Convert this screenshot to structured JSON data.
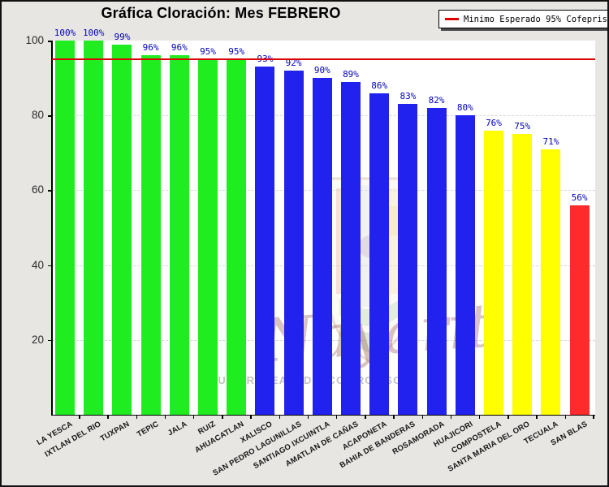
{
  "title": "Gráfica Cloración: Mes FEBRERO",
  "legend": {
    "label": "Minimo Esperado 95% Cofepris",
    "line_color": "#dd0000"
  },
  "watermark": {
    "script_text": "Nayarit",
    "fragments": [
      "U",
      "R",
      "EA",
      "D",
      "CO",
      "RO",
      "SO"
    ]
  },
  "chart_data": {
    "type": "bar",
    "title": "Gráfica Cloración: Mes FEBRERO",
    "categories": [
      "LA YESCA",
      "IXTLAN DEL RIO",
      "TUXPAN",
      "TEPIC",
      "JALA",
      "RUIZ",
      "AHUACATLAN",
      "XALISCO",
      "SAN PEDRO LAGUNILLAS",
      "SANTIAGO IXCUINTLA",
      "AMATLAN DE CAÑAS",
      "ACAPONETA",
      "BAHIA DE BANDERAS",
      "ROSAMORADA",
      "HUAJICORI",
      "COMPOSTELA",
      "SANTA MARIA DEL ORO",
      "TECUALA",
      "SAN BLAS"
    ],
    "values": [
      100,
      100,
      99,
      96,
      96,
      95,
      95,
      93,
      92,
      90,
      89,
      86,
      83,
      82,
      80,
      76,
      75,
      71,
      56
    ],
    "value_labels": [
      "100%",
      "100%",
      "99%",
      "96%",
      "96%",
      "95%",
      "95%",
      "93%",
      "92%",
      "90%",
      "89%",
      "86%",
      "83%",
      "82%",
      "80%",
      "76%",
      "75%",
      "71%",
      "56%"
    ],
    "bar_colors": [
      "#1fed1f",
      "#1fed1f",
      "#1fed1f",
      "#1fed1f",
      "#1fed1f",
      "#1fed1f",
      "#1fed1f",
      "#2222ee",
      "#2222ee",
      "#2222ee",
      "#2222ee",
      "#2222ee",
      "#2222ee",
      "#2222ee",
      "#2222ee",
      "#ffff00",
      "#ffff00",
      "#ffff00",
      "#ff2a2a"
    ],
    "xlabel": "",
    "ylabel": "",
    "ylim": [
      0,
      100
    ],
    "y_ticks": [
      20,
      40,
      60,
      80,
      100
    ],
    "grid": true,
    "legend_position": "top-right",
    "threshold_line": {
      "value": 95,
      "label": "Minimo Esperado 95% Cofepris",
      "color": "#dd0000"
    }
  }
}
